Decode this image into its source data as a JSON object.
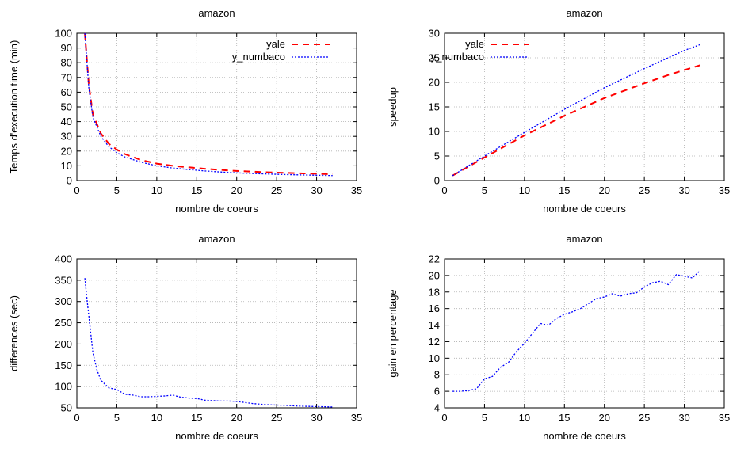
{
  "colors": {
    "yale": "#ff0000",
    "y_numbaco": "#0000ff",
    "grid": "#b0b0b0",
    "axis": "#000000"
  },
  "chart_data": [
    {
      "type": "line",
      "title": "amazon",
      "xlabel": "nombre de coeurs",
      "ylabel": "Temps d'execution time (min)",
      "xlim": [
        0,
        35
      ],
      "ylim": [
        0,
        100
      ],
      "xticks": [
        0,
        5,
        10,
        15,
        20,
        25,
        30,
        35
      ],
      "yticks": [
        0,
        10,
        20,
        30,
        40,
        50,
        60,
        70,
        80,
        90,
        100
      ],
      "grid": true,
      "legend": "top-right",
      "series": [
        {
          "name": "yale",
          "style": "dashed-red",
          "x": [
            1,
            1.5,
            2,
            3,
            4,
            5,
            6,
            8,
            10,
            12,
            14,
            16,
            18,
            20,
            22,
            24,
            26,
            28,
            30,
            32
          ],
          "y": [
            100,
            65,
            45,
            32,
            25,
            21,
            18,
            14,
            11.5,
            10,
            9,
            8,
            7.2,
            6.5,
            6,
            5.6,
            5.2,
            4.9,
            4.6,
            4.3
          ]
        },
        {
          "name": "y_numbaco",
          "style": "dotted-blue",
          "x": [
            1,
            1.5,
            2,
            3,
            4,
            5,
            6,
            8,
            10,
            12,
            14,
            16,
            18,
            20,
            22,
            24,
            26,
            28,
            30,
            32
          ],
          "y": [
            100,
            63,
            43,
            30,
            23,
            19,
            16,
            12.5,
            10,
            8.5,
            7.5,
            6.5,
            5.8,
            5.2,
            4.8,
            4.4,
            4.1,
            3.8,
            3.6,
            3.4
          ]
        }
      ]
    },
    {
      "type": "line",
      "title": "amazon",
      "xlabel": "nombre de coeurs",
      "ylabel": "speedup",
      "xlim": [
        0,
        35
      ],
      "ylim": [
        0,
        30
      ],
      "xticks": [
        0,
        5,
        10,
        15,
        20,
        25,
        30,
        35
      ],
      "yticks": [
        0,
        5,
        10,
        15,
        20,
        25,
        30
      ],
      "grid": true,
      "legend": "top-center",
      "series": [
        {
          "name": "yale",
          "style": "dashed-red",
          "x": [
            1,
            5,
            10,
            15,
            20,
            25,
            28,
            30,
            32
          ],
          "y": [
            1,
            4.7,
            9.2,
            13.2,
            16.8,
            19.8,
            21.5,
            22.5,
            23.5
          ]
        },
        {
          "name": "y_numbaco",
          "style": "dotted-blue",
          "x": [
            1,
            5,
            10,
            15,
            20,
            25,
            30,
            32
          ],
          "y": [
            1,
            5,
            9.8,
            14.5,
            18.9,
            22.8,
            26.5,
            27.7
          ]
        }
      ]
    },
    {
      "type": "line",
      "title": "amazon",
      "xlabel": "nombre de coeurs",
      "ylabel": "differences (sec)",
      "xlim": [
        0,
        35
      ],
      "ylim": [
        50,
        400
      ],
      "xticks": [
        0,
        5,
        10,
        15,
        20,
        25,
        30,
        35
      ],
      "yticks": [
        50,
        100,
        150,
        200,
        250,
        300,
        350,
        400
      ],
      "grid": true,
      "series": [
        {
          "style": "dotted-blue",
          "x": [
            1,
            1.3,
            1.6,
            2,
            2.5,
            3,
            4,
            5,
            6,
            7,
            8,
            9,
            10,
            11,
            12,
            13,
            14,
            15,
            16,
            17,
            18,
            19,
            20,
            22,
            24,
            26,
            28,
            30,
            32
          ],
          "y": [
            355,
            300,
            250,
            180,
            140,
            115,
            97,
            93,
            82,
            80,
            76,
            76,
            77,
            78,
            80,
            75,
            73,
            72,
            68,
            67,
            66,
            66,
            65,
            60,
            57,
            56,
            54,
            53,
            52
          ]
        }
      ]
    },
    {
      "type": "line",
      "title": "amazon",
      "xlabel": "nombre de coeurs",
      "ylabel": "gain en percentage",
      "xlim": [
        0,
        35
      ],
      "ylim": [
        4,
        22
      ],
      "xticks": [
        0,
        5,
        10,
        15,
        20,
        25,
        30,
        35
      ],
      "yticks": [
        4,
        6,
        8,
        10,
        12,
        14,
        16,
        18,
        20,
        22
      ],
      "grid": true,
      "series": [
        {
          "style": "dotted-blue",
          "x": [
            1,
            2,
            3,
            4,
            5,
            6,
            7,
            8,
            9,
            10,
            11,
            12,
            13,
            14,
            15,
            16,
            17,
            18,
            19,
            20,
            21,
            22,
            23,
            24,
            25,
            26,
            27,
            28,
            29,
            30,
            31,
            32
          ],
          "y": [
            6,
            6,
            6.1,
            6.3,
            7.5,
            7.8,
            8.9,
            9.5,
            10.8,
            11.8,
            13,
            14.2,
            14,
            14.8,
            15.3,
            15.6,
            16,
            16.6,
            17.2,
            17.4,
            17.8,
            17.5,
            17.8,
            17.9,
            18.6,
            19.1,
            19.3,
            18.9,
            20.1,
            19.9,
            19.7,
            20.6
          ]
        }
      ]
    }
  ]
}
